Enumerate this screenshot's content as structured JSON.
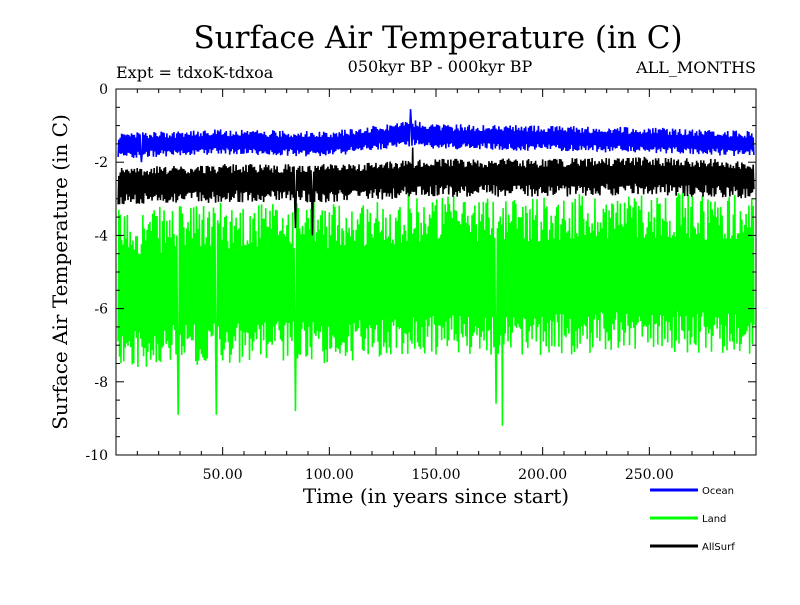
{
  "title": "Surface Air Temperature (in C)",
  "subtitle_left": "Expt = tdxoK-tdxoa",
  "subtitle_center": "050kyr BP - 000kyr BP",
  "subtitle_right": "ALL_MONTHS",
  "chart_data": {
    "type": "line",
    "xlabel": "Time (in years since start)",
    "ylabel": "Surface Air Temperature (in C)",
    "xlim": [
      0,
      300
    ],
    "ylim": [
      -10,
      0
    ],
    "x_ticks": [
      50,
      100,
      150,
      200,
      250
    ],
    "x_tick_labels": [
      "50.00",
      "100.00",
      "150.00",
      "200.00",
      "250.00"
    ],
    "y_ticks": [
      0,
      -2,
      -4,
      -6,
      -8,
      -10
    ],
    "y_tick_labels": [
      "0",
      "-2",
      "-4",
      "-6",
      "-8",
      "-10"
    ],
    "grid": false,
    "legend_position": "bottom-right",
    "series": [
      {
        "name": "Ocean",
        "color": "#0000ff",
        "x_range": [
          1,
          299
        ],
        "band_center": [
          [
            0,
            -1.55
          ],
          [
            50,
            -1.45
          ],
          [
            100,
            -1.5
          ],
          [
            140,
            -1.2
          ],
          [
            150,
            -1.3
          ],
          [
            200,
            -1.35
          ],
          [
            250,
            -1.4
          ],
          [
            299,
            -1.5
          ]
        ],
        "band_range": [
          -0.35,
          0.35
        ],
        "extremes": [
          [
            138,
            -0.55
          ],
          [
            12,
            -2.0
          ]
        ]
      },
      {
        "name": "Land",
        "color": "#00ff00",
        "x_range": [
          1,
          299
        ],
        "band_center": [
          [
            0,
            -5.6
          ],
          [
            50,
            -5.4
          ],
          [
            100,
            -5.4
          ],
          [
            150,
            -5.2
          ],
          [
            200,
            -5.2
          ],
          [
            250,
            -5.1
          ],
          [
            299,
            -5.2
          ]
        ],
        "band_range": [
          -2.1,
          2.3
        ],
        "extremes": [
          [
            181,
            -9.2
          ],
          [
            29,
            -8.9
          ],
          [
            47,
            -8.9
          ],
          [
            84,
            -8.8
          ],
          [
            178,
            -8.6
          ],
          [
            137,
            -2.3
          ]
        ]
      },
      {
        "name": "AllSurf",
        "color": "#000000",
        "x_range": [
          1,
          299
        ],
        "band_center": [
          [
            0,
            -2.6
          ],
          [
            50,
            -2.5
          ],
          [
            100,
            -2.5
          ],
          [
            150,
            -2.35
          ],
          [
            200,
            -2.35
          ],
          [
            250,
            -2.3
          ],
          [
            299,
            -2.4
          ]
        ],
        "band_range": [
          -0.6,
          0.45
        ],
        "extremes": [
          [
            92,
            -4.0
          ],
          [
            84,
            -3.8
          ],
          [
            139,
            -1.6
          ]
        ]
      }
    ]
  },
  "colors": {
    "ocean": "#0000ff",
    "land": "#00ff00",
    "allsurf": "#000000",
    "background": "#ffffff"
  }
}
